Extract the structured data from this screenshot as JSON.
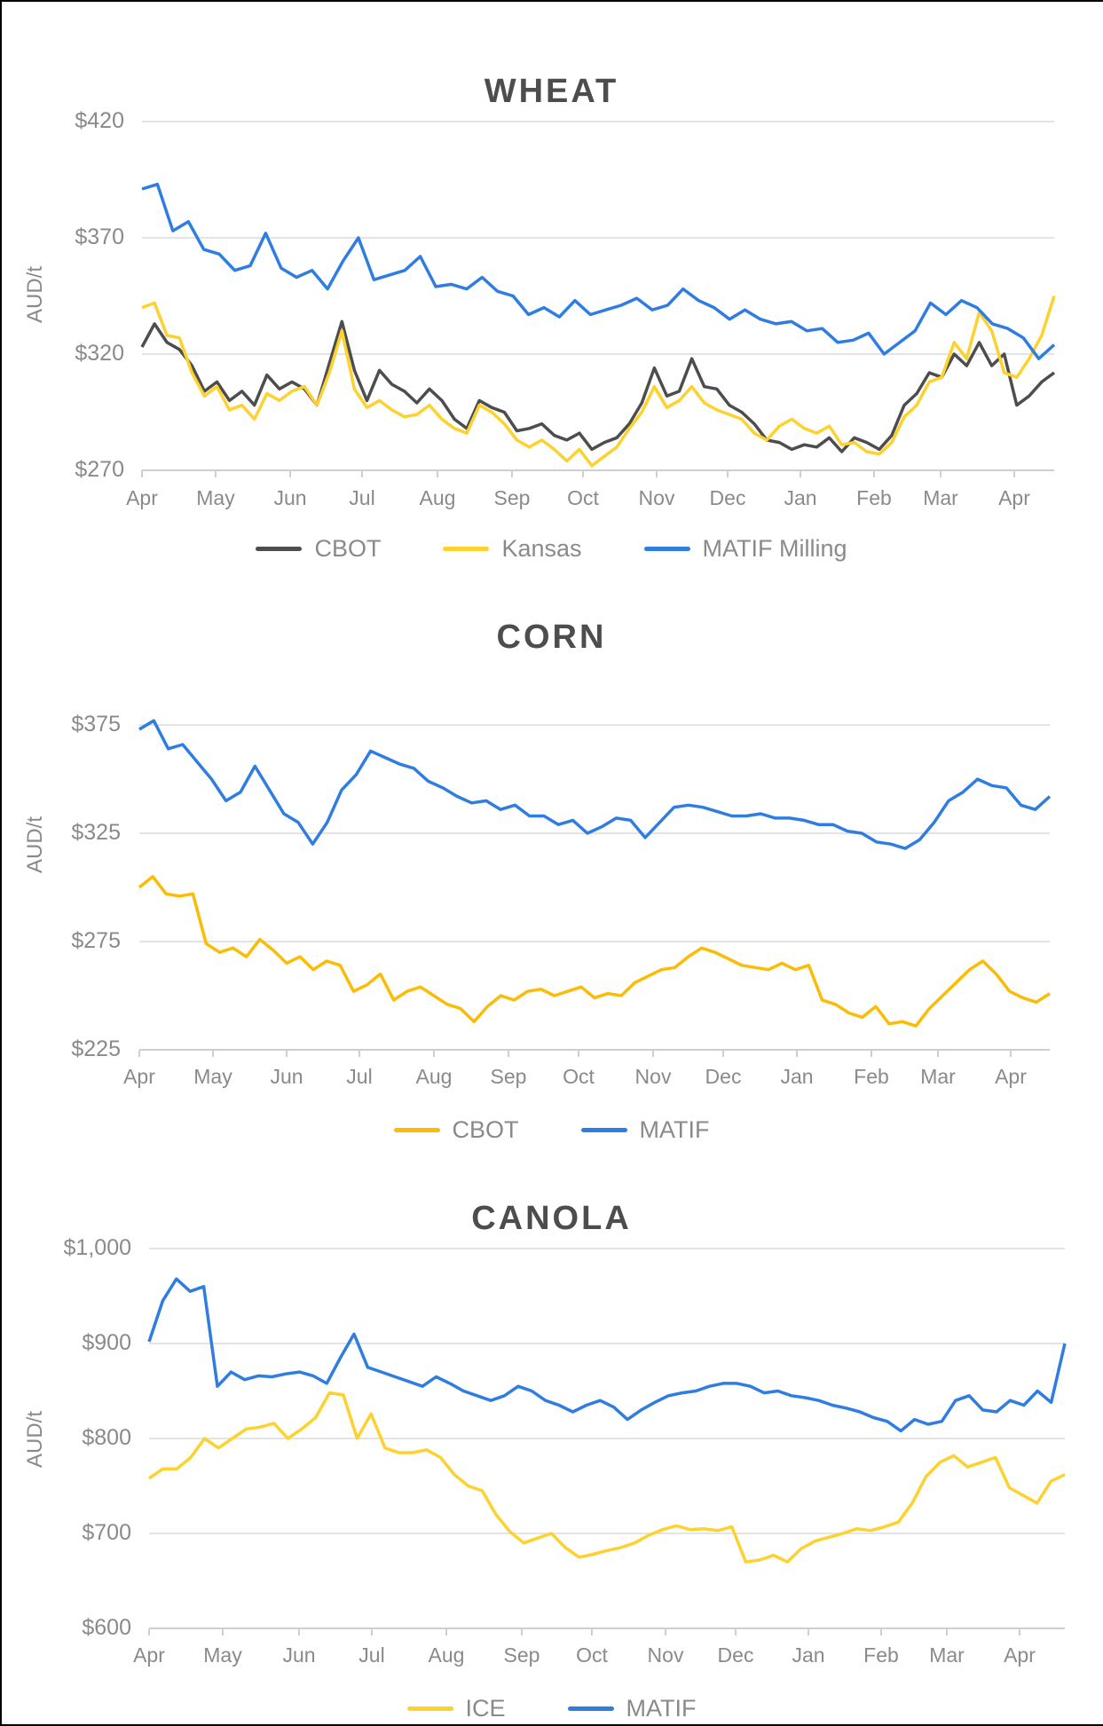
{
  "chart_data": [
    {
      "type": "line",
      "title": "WHEAT",
      "xlabel": "",
      "ylabel": "AUD/t",
      "ylim": [
        270,
        420
      ],
      "yticks": [
        "$420",
        "$370",
        "$320",
        "$270"
      ],
      "ytick_values": [
        420,
        370,
        320,
        270
      ],
      "x_tick_labels": [
        "Apr",
        "May",
        "Jun",
        "Jul",
        "Aug",
        "Sep",
        "Oct",
        "Nov",
        "Dec",
        "Jan",
        "Feb",
        "Mar",
        "Apr"
      ],
      "grid": true,
      "legend_position": "bottom",
      "series": [
        {
          "name": "CBOT",
          "color": "#4d4d4d",
          "values": [
            323,
            333,
            325,
            322,
            315,
            304,
            308,
            300,
            304,
            298,
            311,
            305,
            308,
            305,
            298,
            316,
            334,
            313,
            300,
            313,
            307,
            304,
            299,
            305,
            300,
            292,
            288,
            300,
            297,
            295,
            287,
            288,
            290,
            285,
            283,
            286,
            279,
            282,
            284,
            290,
            299,
            314,
            302,
            304,
            318,
            306,
            305,
            298,
            295,
            290,
            283,
            282,
            279,
            281,
            280,
            284,
            278,
            284,
            282,
            279,
            285,
            298,
            303,
            312,
            310,
            320,
            315,
            325,
            315,
            320,
            298,
            302,
            308,
            312
          ]
        },
        {
          "name": "Kansas",
          "color": "#fdd12e",
          "values": [
            340,
            342,
            328,
            327,
            312,
            302,
            306,
            296,
            298,
            292,
            303,
            300,
            304,
            306,
            298,
            312,
            330,
            305,
            297,
            300,
            296,
            293,
            294,
            298,
            292,
            288,
            286,
            298,
            295,
            290,
            283,
            280,
            283,
            279,
            274,
            279,
            272,
            276,
            280,
            288,
            295,
            306,
            297,
            300,
            306,
            299,
            296,
            294,
            292,
            286,
            283,
            289,
            292,
            288,
            286,
            289,
            281,
            282,
            278,
            277,
            282,
            293,
            298,
            308,
            310,
            325,
            318,
            338,
            330,
            312,
            310,
            318,
            328,
            345
          ]
        },
        {
          "name": "MATIF Milling",
          "color": "#2f7de1",
          "values": [
            391,
            393,
            373,
            377,
            365,
            363,
            356,
            358,
            372,
            357,
            353,
            356,
            348,
            360,
            370,
            352,
            354,
            356,
            362,
            349,
            350,
            348,
            353,
            347,
            345,
            337,
            340,
            336,
            343,
            337,
            339,
            341,
            344,
            339,
            341,
            348,
            343,
            340,
            335,
            339,
            335,
            333,
            334,
            330,
            331,
            325,
            326,
            329,
            320,
            325,
            330,
            342,
            337,
            343,
            340,
            333,
            331,
            327,
            318,
            324
          ]
        }
      ]
    },
    {
      "type": "line",
      "title": "CORN",
      "xlabel": "",
      "ylabel": "AUD/t",
      "ylim": [
        225,
        375
      ],
      "yticks": [
        "$375",
        "$325",
        "$275",
        "$225"
      ],
      "ytick_values": [
        375,
        325,
        275,
        225
      ],
      "x_tick_labels": [
        "Apr",
        "May",
        "Jun",
        "Jul",
        "Aug",
        "Sep",
        "Oct",
        "Nov",
        "Dec",
        "Jan",
        "Feb",
        "Mar",
        "Apr"
      ],
      "grid": true,
      "legend_position": "bottom",
      "series": [
        {
          "name": "CBOT",
          "color": "#fbbc05",
          "values": [
            300,
            305,
            297,
            296,
            297,
            274,
            270,
            272,
            268,
            276,
            271,
            265,
            268,
            262,
            266,
            264,
            252,
            255,
            260,
            248,
            252,
            254,
            250,
            246,
            244,
            238,
            245,
            250,
            248,
            252,
            253,
            250,
            252,
            254,
            249,
            251,
            250,
            256,
            259,
            262,
            263,
            268,
            272,
            270,
            267,
            264,
            263,
            262,
            265,
            262,
            264,
            248,
            246,
            242,
            240,
            245,
            237,
            238,
            236,
            244,
            250,
            256,
            262,
            266,
            260,
            252,
            249,
            247,
            251
          ]
        },
        {
          "name": "MATIF",
          "color": "#2f7de1",
          "values": [
            373,
            377,
            364,
            366,
            358,
            350,
            340,
            344,
            356,
            345,
            334,
            330,
            320,
            330,
            345,
            352,
            363,
            360,
            357,
            355,
            349,
            346,
            342,
            339,
            340,
            336,
            338,
            333,
            333,
            329,
            331,
            325,
            328,
            332,
            331,
            323,
            330,
            337,
            338,
            337,
            335,
            333,
            333,
            334,
            332,
            332,
            331,
            329,
            329,
            326,
            325,
            321,
            320,
            318,
            322,
            330,
            340,
            344,
            350,
            347,
            346,
            338,
            336,
            342
          ]
        }
      ]
    },
    {
      "type": "line",
      "title": "CANOLA",
      "xlabel": "",
      "ylabel": "AUD/t",
      "ylim": [
        600,
        1000
      ],
      "yticks": [
        "$1,000",
        "$900",
        "$800",
        "$700",
        "$600"
      ],
      "ytick_values": [
        1000,
        900,
        800,
        700,
        600
      ],
      "x_tick_labels": [
        "Apr",
        "May",
        "Jun",
        "Jul",
        "Aug",
        "Sep",
        "Oct",
        "Nov",
        "Dec",
        "Jan",
        "Feb",
        "Mar",
        "Apr"
      ],
      "grid": true,
      "legend_position": "bottom",
      "series": [
        {
          "name": "ICE",
          "color": "#fdd12e",
          "values": [
            758,
            768,
            768,
            780,
            800,
            790,
            800,
            810,
            812,
            816,
            800,
            810,
            822,
            848,
            846,
            800,
            826,
            790,
            785,
            785,
            788,
            780,
            762,
            750,
            745,
            720,
            702,
            690,
            695,
            700,
            685,
            675,
            678,
            682,
            685,
            690,
            698,
            704,
            708,
            704,
            705,
            703,
            707,
            670,
            672,
            677,
            670,
            684,
            692,
            696,
            700,
            705,
            703,
            707,
            712,
            732,
            760,
            775,
            782,
            770,
            775,
            780,
            748,
            740,
            732,
            755,
            762
          ]
        },
        {
          "name": "MATIF",
          "color": "#2f7de1",
          "values": [
            902,
            945,
            968,
            955,
            960,
            855,
            870,
            862,
            866,
            865,
            868,
            870,
            866,
            858,
            885,
            910,
            875,
            870,
            865,
            860,
            855,
            865,
            858,
            850,
            845,
            840,
            845,
            855,
            850,
            840,
            835,
            828,
            835,
            840,
            833,
            820,
            830,
            838,
            845,
            848,
            850,
            855,
            858,
            858,
            855,
            848,
            850,
            845,
            843,
            840,
            835,
            832,
            828,
            822,
            818,
            808,
            820,
            815,
            818,
            840,
            845,
            830,
            828,
            840,
            835,
            850,
            838,
            900
          ]
        }
      ]
    }
  ],
  "charts": [
    {
      "title": "WHEAT",
      "ylabel": "AUD/t",
      "legend": [
        "CBOT",
        "Kansas",
        "MATIF Milling"
      ]
    },
    {
      "title": "CORN",
      "ylabel": "AUD/t",
      "legend": [
        "CBOT",
        "MATIF"
      ]
    },
    {
      "title": "CANOLA",
      "ylabel": "AUD/t",
      "legend": [
        "ICE",
        "MATIF"
      ]
    }
  ],
  "colors": {
    "grid": "#dcdcdc",
    "axis_text": "#8a8a8a",
    "title": "#4d4d4d"
  }
}
